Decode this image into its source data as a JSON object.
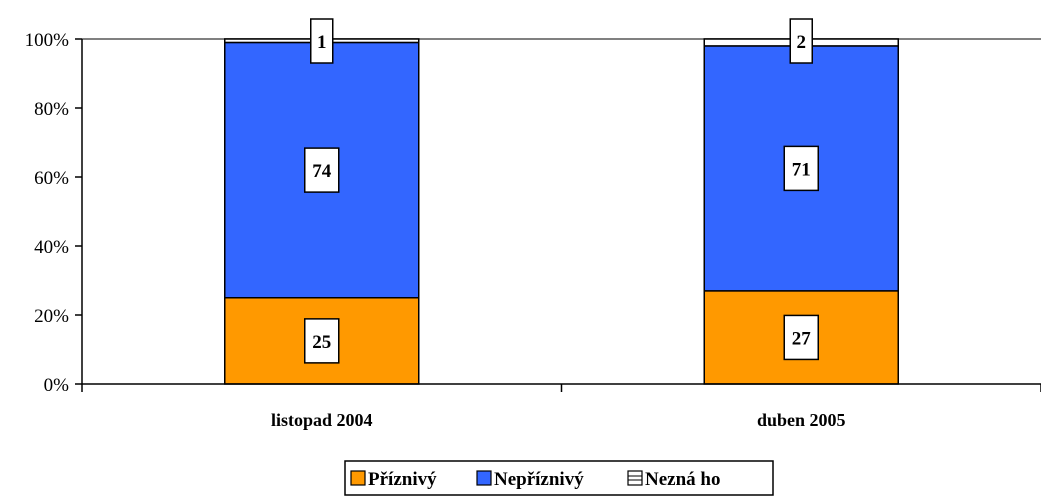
{
  "chart_data": {
    "type": "bar",
    "stacked": true,
    "percent": true,
    "categories": [
      "listopad 2004",
      "duben 2005"
    ],
    "series": [
      {
        "name": "Příznivý",
        "values": [
          25,
          27
        ],
        "color": "#FF9900"
      },
      {
        "name": "Nepříznivý",
        "values": [
          74,
          71
        ],
        "color": "#3366FF"
      },
      {
        "name": "Nezná ho",
        "values": [
          1,
          2
        ],
        "color": "#FFFFFF"
      }
    ],
    "y_ticks": [
      "0%",
      "20%",
      "40%",
      "60%",
      "80%",
      "100%"
    ],
    "ylim": [
      0,
      100
    ],
    "grid": true,
    "legend_position": "bottom"
  }
}
